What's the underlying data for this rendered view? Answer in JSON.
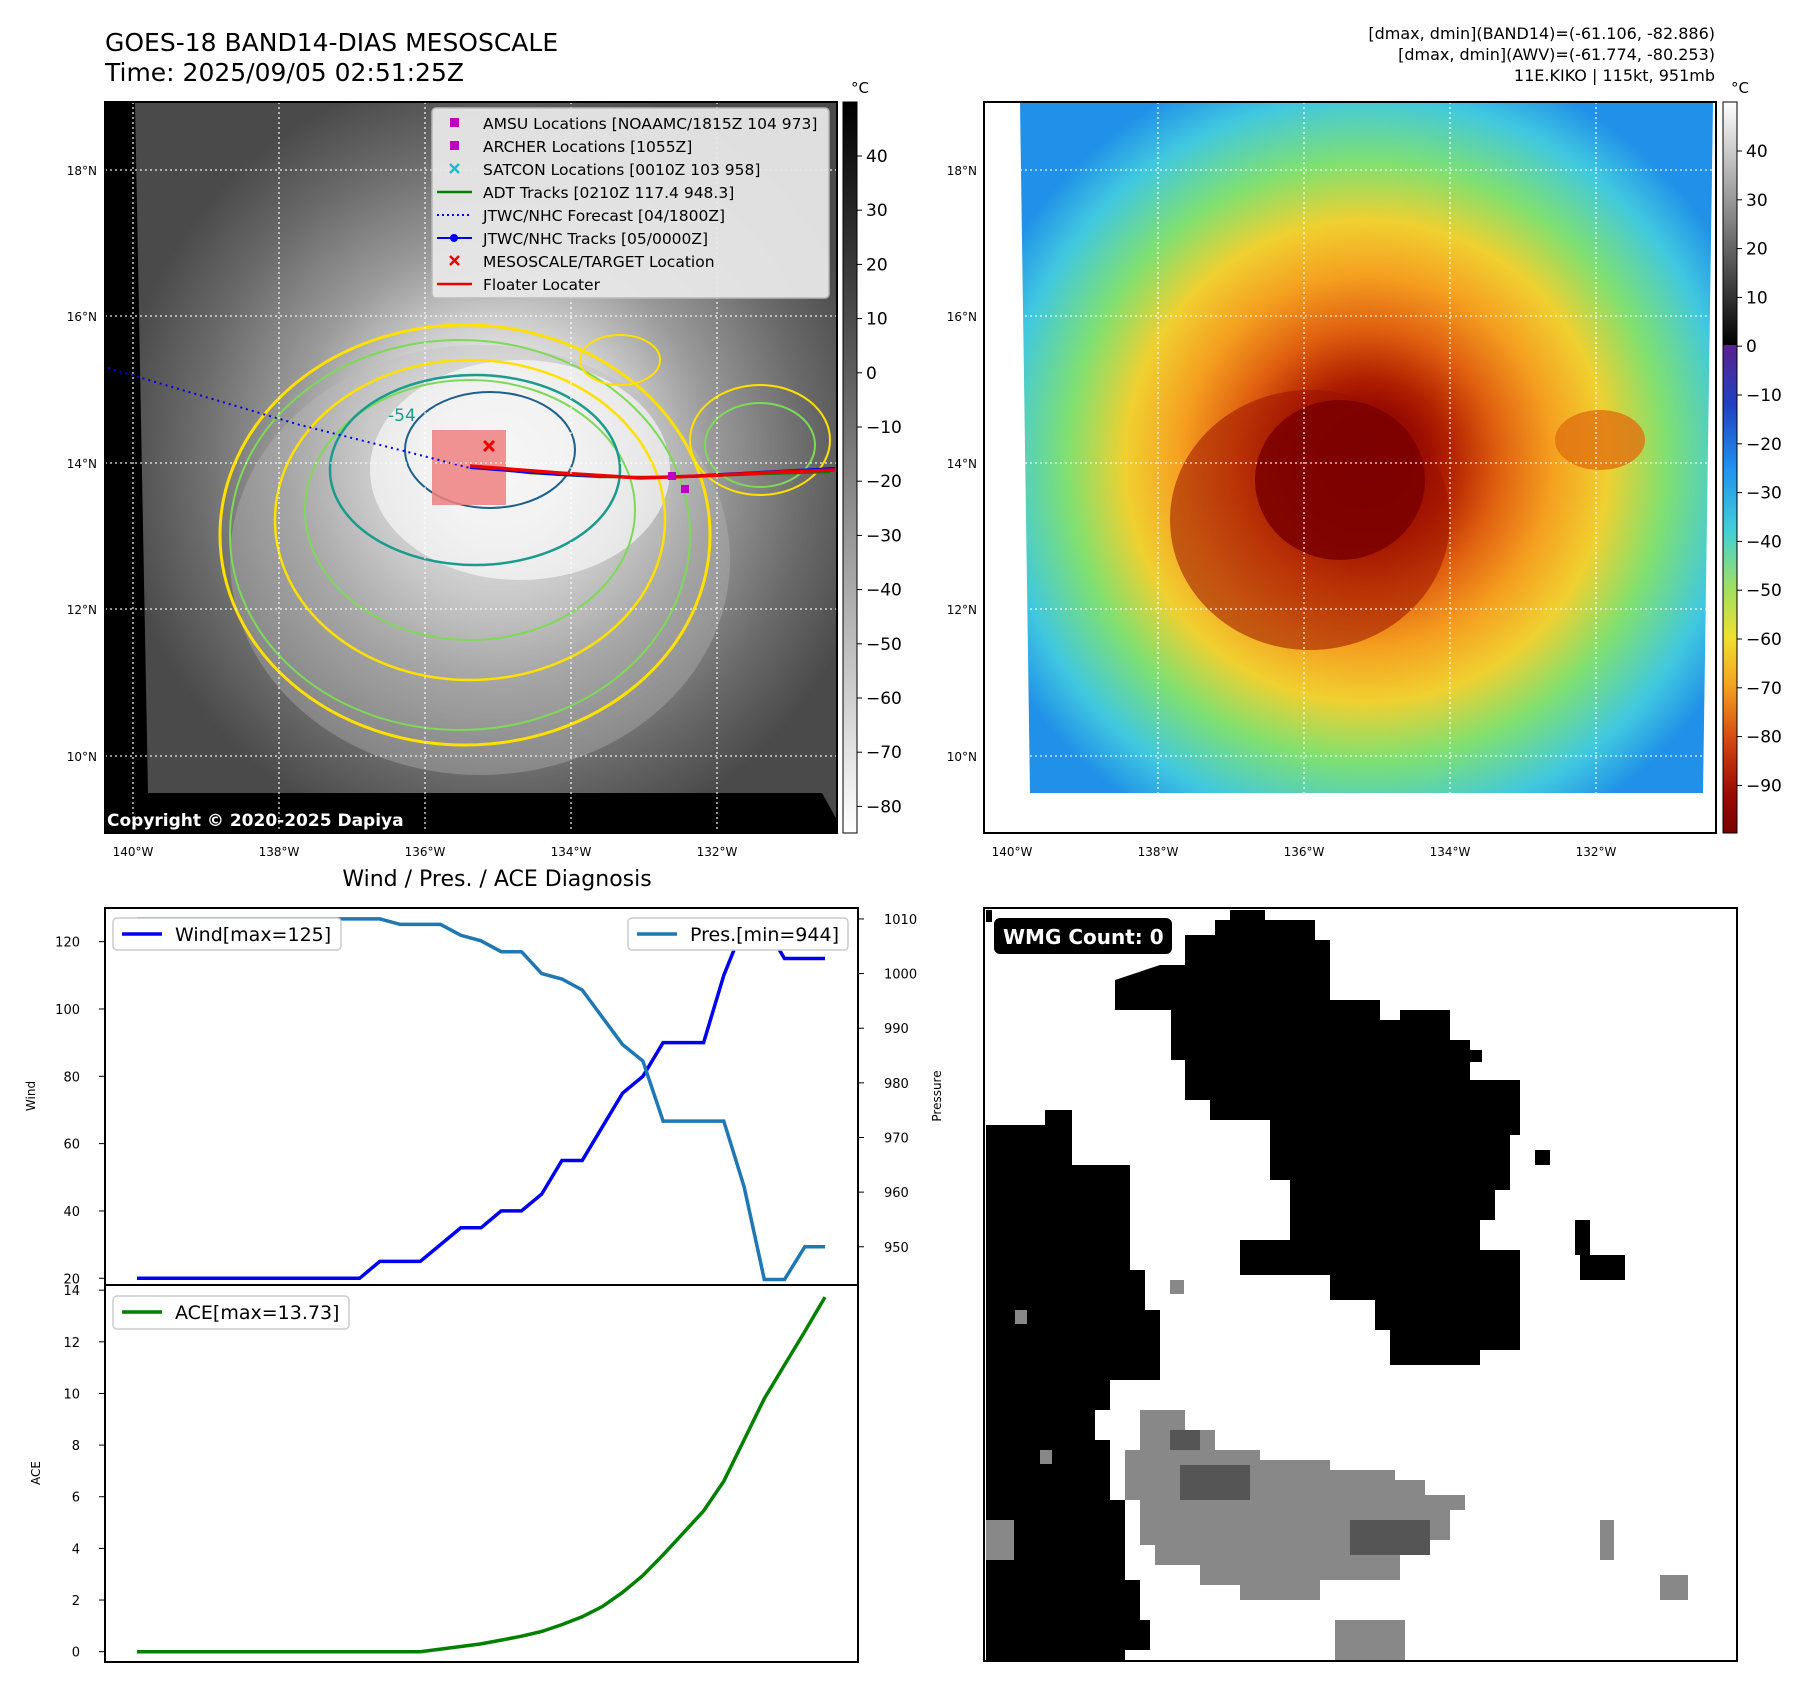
{
  "header": {
    "title_line1": "GOES-18 BAND14-DIAS MESOSCALE",
    "title_line2": "Time: 2025/09/05 02:51:25Z",
    "info_line1": "[dmax, dmin](BAND14)=(-61.106, -82.886)",
    "info_line2": "[dmax, dmin](AWV)=(-61.774, -80.253)",
    "info_line3": "11E.KIKO | 115kt, 951mb"
  },
  "colors": {
    "wind": "#0000ee",
    "pressure": "#1f77b4",
    "ace": "#008000",
    "track_red": "#ee0000",
    "contour_yellow": "#ffe000",
    "contour_green": "#7ed957",
    "contour_teal": "#1a9c8c",
    "contour_dark": "#1f5f8b"
  },
  "map_panels": {
    "lat_labels": [
      "18°N",
      "16°N",
      "14°N",
      "12°N",
      "10°N"
    ],
    "lon_labels": [
      "140°W",
      "138°W",
      "136°W",
      "134°W",
      "132°W"
    ],
    "copyright": "Copyright © 2020-2025 Dapiya",
    "contour_label": "-54"
  },
  "legend": [
    {
      "label": "AMSU Locations [NOAAMC/1815Z 104 973]",
      "marker": "square",
      "color": "#c000c0"
    },
    {
      "label": "ARCHER Locations [1055Z]",
      "marker": "square",
      "color": "#c000c0"
    },
    {
      "label": "SATCON Locations [0010Z 103 958]",
      "marker": "x",
      "color": "#17becf"
    },
    {
      "label": "ADT Tracks [0210Z 117.4 948.3]",
      "marker": "line",
      "color": "#008000"
    },
    {
      "label": "JTWC/NHC Forecast [04/1800Z]",
      "marker": "dotted",
      "color": "#0000ee"
    },
    {
      "label": "JTWC/NHC Tracks [05/0000Z]",
      "marker": "line-dot",
      "color": "#0000ee"
    },
    {
      "label": "MESOSCALE/TARGET Location",
      "marker": "x",
      "color": "#ee0000"
    },
    {
      "label": "Floater Locater",
      "marker": "line",
      "color": "#ee0000"
    }
  ],
  "colorbar_gray": {
    "unit": "°C",
    "ticks": [
      "40",
      "30",
      "20",
      "10",
      "0",
      "−10",
      "−20",
      "−30",
      "−40",
      "−50",
      "−60",
      "−70",
      "−80"
    ]
  },
  "colorbar_color": {
    "unit": "°C",
    "ticks": [
      "40",
      "30",
      "20",
      "10",
      "0",
      "−10",
      "−20",
      "−30",
      "−40",
      "−50",
      "−60",
      "−70",
      "−80",
      "−90"
    ]
  },
  "chart_data": [
    {
      "type": "line",
      "title": "Wind / Pres. / ACE Diagnosis",
      "ylabel": "Wind",
      "y2label": "Pressure",
      "ylim": [
        18,
        130
      ],
      "y2lim": [
        943,
        1012
      ],
      "yticks": [
        "20",
        "40",
        "60",
        "80",
        "100",
        "120"
      ],
      "y2ticks": [
        "950",
        "960",
        "970",
        "980",
        "990",
        "1000",
        "1010"
      ],
      "x": [
        0,
        1,
        2,
        3,
        4,
        5,
        6,
        7,
        8,
        9,
        10,
        11,
        12,
        13,
        14,
        15,
        16,
        17,
        18,
        19,
        20,
        21,
        22,
        23,
        24,
        25,
        26,
        27,
        28,
        29,
        30,
        31,
        32,
        33,
        34
      ],
      "series": [
        {
          "name": "Wind[max=125]",
          "axis": "left",
          "values": [
            20,
            20,
            20,
            20,
            20,
            20,
            20,
            20,
            20,
            20,
            20,
            20,
            25,
            25,
            25,
            30,
            35,
            35,
            40,
            40,
            45,
            55,
            55,
            65,
            75,
            80,
            90,
            90,
            90,
            110,
            125,
            125,
            115,
            115,
            115
          ]
        },
        {
          "name": "Pres.[min=944]",
          "axis": "right",
          "values": [
            1010,
            1010,
            1010,
            1010,
            1010,
            1010,
            1010,
            1010,
            1010,
            1010,
            1010,
            1010,
            1010,
            1009,
            1009,
            1009,
            1007,
            1006,
            1004,
            1004,
            1000,
            999,
            997,
            992,
            987,
            984,
            973,
            973,
            973,
            973,
            961,
            944,
            944,
            950,
            950
          ]
        }
      ]
    },
    {
      "type": "line",
      "ylabel": "ACE",
      "ylim": [
        -0.4,
        14.2
      ],
      "yticks": [
        "0",
        "2",
        "4",
        "6",
        "8",
        "10",
        "12",
        "14"
      ],
      "x": [
        0,
        1,
        2,
        3,
        4,
        5,
        6,
        7,
        8,
        9,
        10,
        11,
        12,
        13,
        14,
        15,
        16,
        17,
        18,
        19,
        20,
        21,
        22,
        23,
        24,
        25,
        26,
        27,
        28,
        29,
        30,
        31,
        32,
        33,
        34
      ],
      "series": [
        {
          "name": "ACE[max=13.73]",
          "values": [
            0,
            0,
            0,
            0,
            0,
            0,
            0,
            0,
            0,
            0,
            0,
            0,
            0,
            0,
            0,
            0.1,
            0.2,
            0.3,
            0.45,
            0.6,
            0.78,
            1.05,
            1.35,
            1.75,
            2.3,
            2.95,
            3.75,
            4.6,
            5.45,
            6.6,
            8.2,
            9.8,
            11.1,
            12.4,
            13.73
          ]
        }
      ]
    }
  ],
  "wmg": {
    "label": "WMG Count: 0"
  }
}
